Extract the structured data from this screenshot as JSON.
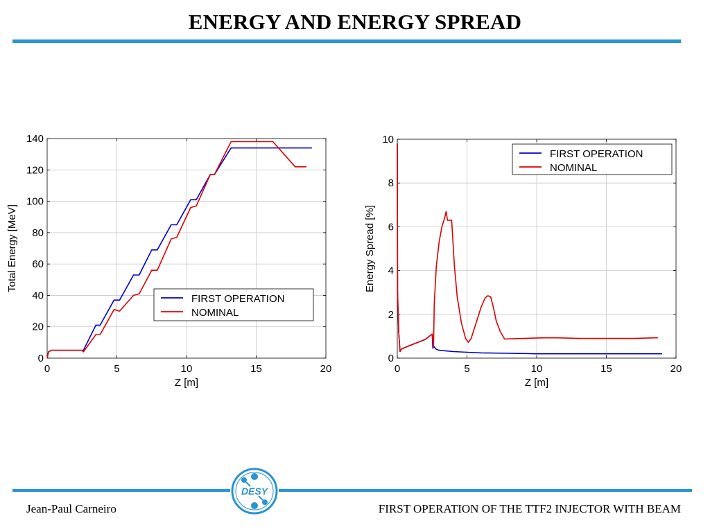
{
  "page": {
    "title": "ENERGY AND ENERGY SPREAD",
    "footer_left": "Jean-Paul Carneiro",
    "footer_right": "FIRST OPERATION OF THE TTF2 INJECTOR WITH BEAM",
    "logo_text": "DESY",
    "accent_color": "#2a93d1"
  },
  "chart_data": [
    {
      "type": "line",
      "title": "",
      "xlabel": "Z [m]",
      "ylabel": "Total Energy [MeV]",
      "xlim": [
        0,
        20
      ],
      "ylim": [
        0,
        140
      ],
      "xticks": [
        0,
        5,
        10,
        15,
        20
      ],
      "yticks": [
        0,
        20,
        40,
        60,
        80,
        100,
        120,
        140
      ],
      "grid": true,
      "legend": "lower-right",
      "series": [
        {
          "name": "FIRST OPERATION",
          "color": "#0000cc",
          "x": [
            0,
            0.1,
            0.3,
            2.5,
            2.6,
            3.5,
            3.8,
            4.8,
            5.2,
            6.2,
            6.6,
            7.5,
            7.9,
            8.9,
            9.3,
            10.3,
            10.7,
            11.7,
            12,
            13.2,
            19
          ],
          "y": [
            0,
            4,
            5,
            5,
            5,
            21,
            21,
            37,
            37,
            53,
            53,
            69,
            69,
            85,
            85,
            101,
            101,
            117,
            117,
            134,
            134
          ]
        },
        {
          "name": "NOMINAL",
          "color": "#dd0000",
          "x": [
            0,
            0.1,
            0.3,
            2.5,
            2.6,
            3.5,
            3.8,
            4.8,
            5.2,
            6.2,
            6.6,
            7.5,
            7.9,
            8.9,
            9.3,
            10.3,
            10.7,
            11.7,
            12,
            13.2,
            16.2,
            17.2,
            17.8,
            18.6
          ],
          "y": [
            0,
            4,
            5,
            5,
            4,
            15,
            15,
            31,
            30,
            40,
            41,
            56,
            56,
            76,
            77,
            96,
            97,
            117,
            117,
            138,
            138,
            128,
            122,
            122
          ]
        }
      ]
    },
    {
      "type": "line",
      "title": "",
      "xlabel": "Z [m]",
      "ylabel": "Energy Spread [%]",
      "xlim": [
        0,
        20
      ],
      "ylim": [
        0,
        10
      ],
      "xticks": [
        0,
        5,
        10,
        15,
        20
      ],
      "yticks": [
        0,
        2,
        4,
        6,
        8,
        10
      ],
      "grid": true,
      "legend": "top-right",
      "series": [
        {
          "name": "FIRST OPERATION",
          "color": "#0000cc",
          "x": [
            0,
            0.02,
            0.1,
            0.2,
            0.3,
            1,
            2,
            2.5,
            2.55,
            2.6,
            2.8,
            3,
            3.5,
            4,
            5,
            6,
            8,
            10,
            12,
            15,
            19
          ],
          "y": [
            9.8,
            3,
            1.2,
            0.3,
            0.42,
            0.6,
            0.85,
            1.1,
            0.45,
            0.55,
            0.4,
            0.36,
            0.33,
            0.3,
            0.27,
            0.24,
            0.22,
            0.2,
            0.2,
            0.2,
            0.2
          ]
        },
        {
          "name": "NOMINAL",
          "color": "#dd0000",
          "x": [
            0,
            0.02,
            0.1,
            0.2,
            0.3,
            1,
            2,
            2.5,
            2.6,
            2.65,
            2.8,
            3,
            3.2,
            3.4,
            3.5,
            3.6,
            3.9,
            4.1,
            4.3,
            4.6,
            4.9,
            5.1,
            5.3,
            5.6,
            6,
            6.3,
            6.5,
            6.7,
            6.9,
            7.1,
            7.4,
            7.7,
            8,
            9,
            10,
            11,
            12,
            13,
            14,
            15,
            16,
            17,
            18,
            18.7
          ],
          "y": [
            9.8,
            3,
            1.2,
            0.3,
            0.42,
            0.6,
            0.85,
            1.1,
            0.5,
            2.5,
            4.2,
            5.3,
            6,
            6.4,
            6.7,
            6.3,
            6.3,
            4.2,
            2.8,
            1.6,
            0.9,
            0.72,
            0.9,
            1.5,
            2.3,
            2.75,
            2.85,
            2.8,
            2.3,
            1.7,
            1.2,
            0.87,
            0.88,
            0.9,
            0.92,
            0.93,
            0.92,
            0.9,
            0.9,
            0.9,
            0.9,
            0.9,
            0.92,
            0.93
          ]
        }
      ]
    }
  ]
}
